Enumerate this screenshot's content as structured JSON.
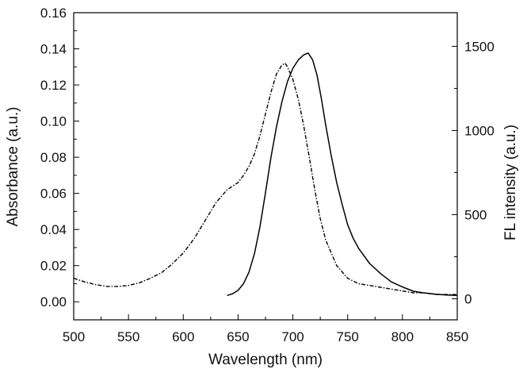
{
  "chart_data": {
    "type": "line",
    "xlabel": "Wavelength (nm)",
    "ylabel_left": "Absorbance (a.u.)",
    "ylabel_right": "FL intensity (a.u.)",
    "xlim": [
      500,
      850
    ],
    "ylim_left": [
      -0.01,
      0.16
    ],
    "ylim_right": [
      -125,
      1700
    ],
    "grid": false,
    "legend": "none",
    "x_ticks": [
      "500",
      "550",
      "600",
      "650",
      "700",
      "750",
      "800",
      "850"
    ],
    "y_left_ticks": [
      "0.00",
      "0.02",
      "0.04",
      "0.06",
      "0.08",
      "0.10",
      "0.12",
      "0.14",
      "0.16"
    ],
    "y_right_ticks": [
      "0",
      "500",
      "1000",
      "1500"
    ],
    "series": [
      {
        "axis": "left",
        "style": "dash-dot",
        "x": [
          500,
          510,
          520,
          530,
          540,
          550,
          560,
          570,
          580,
          590,
          600,
          610,
          620,
          630,
          640,
          645,
          650,
          655,
          660,
          665,
          670,
          675,
          680,
          685,
          690,
          693,
          695,
          700,
          705,
          710,
          715,
          720,
          725,
          730,
          740,
          750,
          760,
          770,
          780,
          790,
          800,
          810,
          820,
          830,
          840,
          850
        ],
        "values": [
          0.013,
          0.011,
          0.0095,
          0.0085,
          0.0085,
          0.009,
          0.0105,
          0.013,
          0.016,
          0.021,
          0.027,
          0.035,
          0.045,
          0.055,
          0.062,
          0.064,
          0.066,
          0.07,
          0.075,
          0.082,
          0.092,
          0.104,
          0.116,
          0.126,
          0.131,
          0.132,
          0.13,
          0.123,
          0.112,
          0.097,
          0.08,
          0.062,
          0.046,
          0.034,
          0.02,
          0.013,
          0.01,
          0.009,
          0.008,
          0.007,
          0.006,
          0.005,
          0.005,
          0.004,
          0.004,
          0.004
        ]
      },
      {
        "axis": "right",
        "style": "solid",
        "x": [
          640,
          645,
          650,
          655,
          660,
          665,
          670,
          675,
          680,
          685,
          690,
          695,
          700,
          705,
          710,
          714,
          718,
          722,
          726,
          730,
          735,
          740,
          745,
          750,
          755,
          760,
          770,
          780,
          790,
          800,
          810,
          820,
          830,
          840,
          850
        ],
        "values": [
          20,
          30,
          50,
          90,
          160,
          270,
          430,
          630,
          840,
          1020,
          1170,
          1290,
          1370,
          1420,
          1450,
          1460,
          1420,
          1330,
          1190,
          1030,
          850,
          690,
          560,
          440,
          360,
          300,
          210,
          150,
          100,
          70,
          45,
          35,
          28,
          22,
          20
        ]
      }
    ]
  }
}
